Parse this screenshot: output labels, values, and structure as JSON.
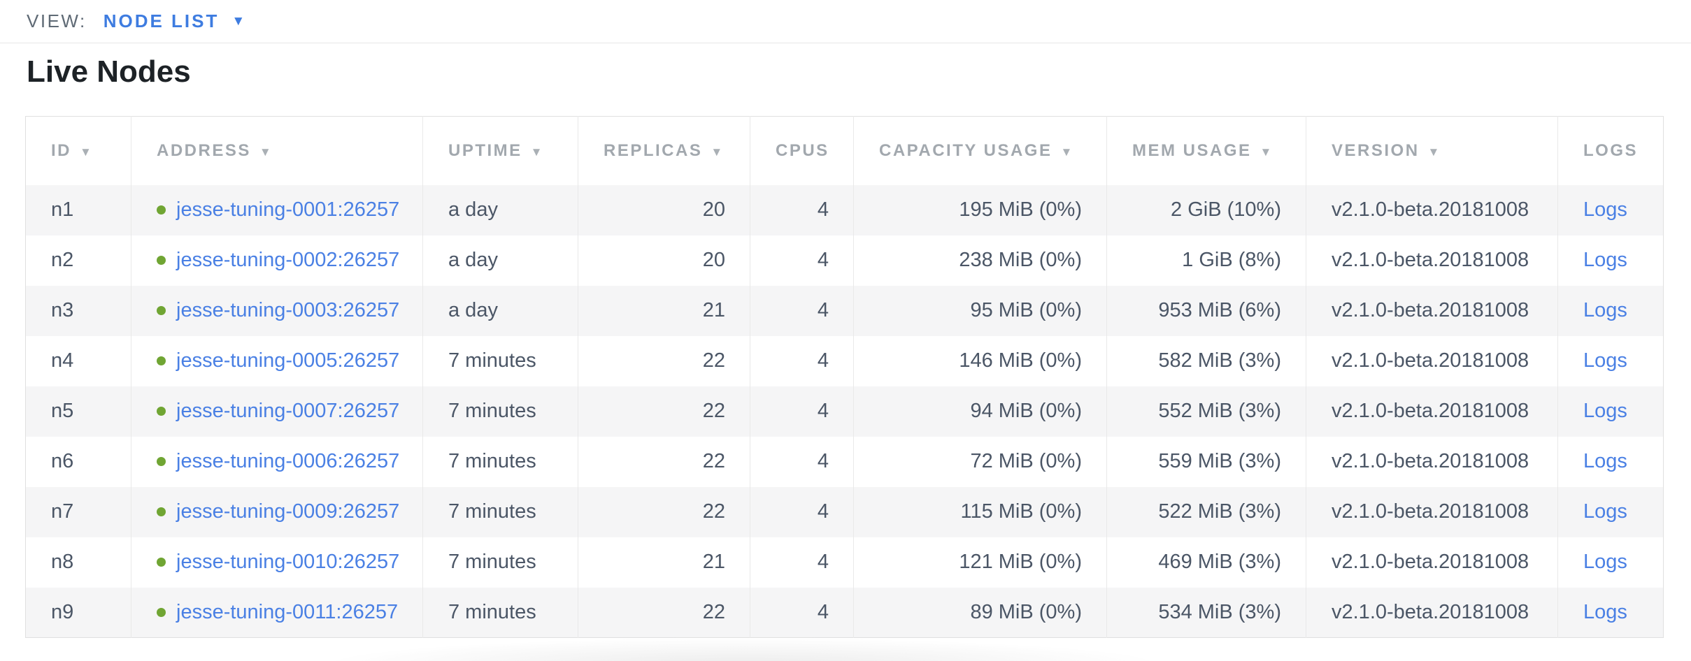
{
  "view_bar": {
    "label": "VIEW:",
    "selected": "NODE LIST"
  },
  "page": {
    "title": "Live Nodes"
  },
  "icons": {
    "view_caret": "▼",
    "sort_descending": "▼"
  },
  "colors": {
    "accent_blue": "#3e7ce0",
    "link_blue": "#4a80e4",
    "status_green": "#70a533",
    "header_gray": "#a2a8ae",
    "cell_text": "#4b5666",
    "row_stripe": "#f5f5f6"
  },
  "table": {
    "columns": [
      {
        "key": "id",
        "label": "ID",
        "sortable": true
      },
      {
        "key": "address",
        "label": "ADDRESS",
        "sortable": true
      },
      {
        "key": "uptime",
        "label": "UPTIME",
        "sortable": true
      },
      {
        "key": "replicas",
        "label": "REPLICAS",
        "sortable": true
      },
      {
        "key": "cpus",
        "label": "CPUS",
        "sortable": false
      },
      {
        "key": "capacity",
        "label": "CAPACITY USAGE",
        "sortable": true
      },
      {
        "key": "mem",
        "label": "MEM USAGE",
        "sortable": true
      },
      {
        "key": "version",
        "label": "VERSION",
        "sortable": true
      },
      {
        "key": "logs",
        "label": "LOGS",
        "sortable": false
      }
    ],
    "rows": [
      {
        "id": "n1",
        "address": "jesse-tuning-0001:26257",
        "uptime": "a day",
        "replicas": 20,
        "cpus": 4,
        "capacity": "195 MiB (0%)",
        "mem": "2 GiB (10%)",
        "version": "v2.1.0-beta.20181008",
        "logs": "Logs"
      },
      {
        "id": "n2",
        "address": "jesse-tuning-0002:26257",
        "uptime": "a day",
        "replicas": 20,
        "cpus": 4,
        "capacity": "238 MiB (0%)",
        "mem": "1 GiB (8%)",
        "version": "v2.1.0-beta.20181008",
        "logs": "Logs"
      },
      {
        "id": "n3",
        "address": "jesse-tuning-0003:26257",
        "uptime": "a day",
        "replicas": 21,
        "cpus": 4,
        "capacity": "95 MiB (0%)",
        "mem": "953 MiB (6%)",
        "version": "v2.1.0-beta.20181008",
        "logs": "Logs"
      },
      {
        "id": "n4",
        "address": "jesse-tuning-0005:26257",
        "uptime": "7 minutes",
        "replicas": 22,
        "cpus": 4,
        "capacity": "146 MiB (0%)",
        "mem": "582 MiB (3%)",
        "version": "v2.1.0-beta.20181008",
        "logs": "Logs"
      },
      {
        "id": "n5",
        "address": "jesse-tuning-0007:26257",
        "uptime": "7 minutes",
        "replicas": 22,
        "cpus": 4,
        "capacity": "94 MiB (0%)",
        "mem": "552 MiB (3%)",
        "version": "v2.1.0-beta.20181008",
        "logs": "Logs"
      },
      {
        "id": "n6",
        "address": "jesse-tuning-0006:26257",
        "uptime": "7 minutes",
        "replicas": 22,
        "cpus": 4,
        "capacity": "72 MiB (0%)",
        "mem": "559 MiB (3%)",
        "version": "v2.1.0-beta.20181008",
        "logs": "Logs"
      },
      {
        "id": "n7",
        "address": "jesse-tuning-0009:26257",
        "uptime": "7 minutes",
        "replicas": 22,
        "cpus": 4,
        "capacity": "115 MiB (0%)",
        "mem": "522 MiB (3%)",
        "version": "v2.1.0-beta.20181008",
        "logs": "Logs"
      },
      {
        "id": "n8",
        "address": "jesse-tuning-0010:26257",
        "uptime": "7 minutes",
        "replicas": 21,
        "cpus": 4,
        "capacity": "121 MiB (0%)",
        "mem": "469 MiB (3%)",
        "version": "v2.1.0-beta.20181008",
        "logs": "Logs"
      },
      {
        "id": "n9",
        "address": "jesse-tuning-0011:26257",
        "uptime": "7 minutes",
        "replicas": 22,
        "cpus": 4,
        "capacity": "89 MiB (0%)",
        "mem": "534 MiB (3%)",
        "version": "v2.1.0-beta.20181008",
        "logs": "Logs"
      }
    ]
  }
}
